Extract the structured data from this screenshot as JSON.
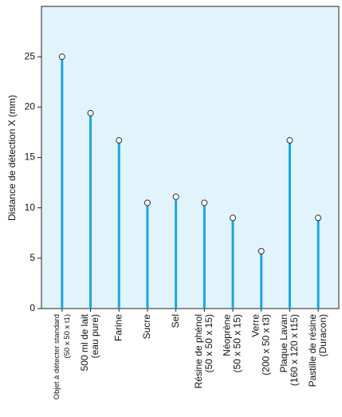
{
  "chart_data": {
    "type": "lollipop",
    "y_label": "Distance de détection X (mm)",
    "categories": [
      [
        "Objet à détecter standard",
        "(50 x 50 x t1)"
      ],
      [
        "500 ml de lait",
        "(eau pure)"
      ],
      [
        "Farine"
      ],
      [
        "Sucre"
      ],
      [
        "Sel"
      ],
      [
        "Résine de phénol",
        "(50 x 50 x 15)"
      ],
      [
        "Néoprène",
        "(50 x 50 x 15)"
      ],
      [
        "Verre",
        "(200 x 50 x t3)"
      ],
      [
        "Plaque Lavan",
        "(160 x 120 x t15)"
      ],
      [
        "Pastille de résine",
        "(Duracon)"
      ]
    ],
    "values": [
      25,
      19.4,
      16.7,
      10.5,
      11.1,
      10.5,
      9.0,
      5.7,
      16.7,
      9.0
    ],
    "color": "#1aa7dc",
    "ylim": [
      0,
      30
    ],
    "yticks": [
      0,
      5,
      10,
      15,
      20,
      25
    ]
  }
}
